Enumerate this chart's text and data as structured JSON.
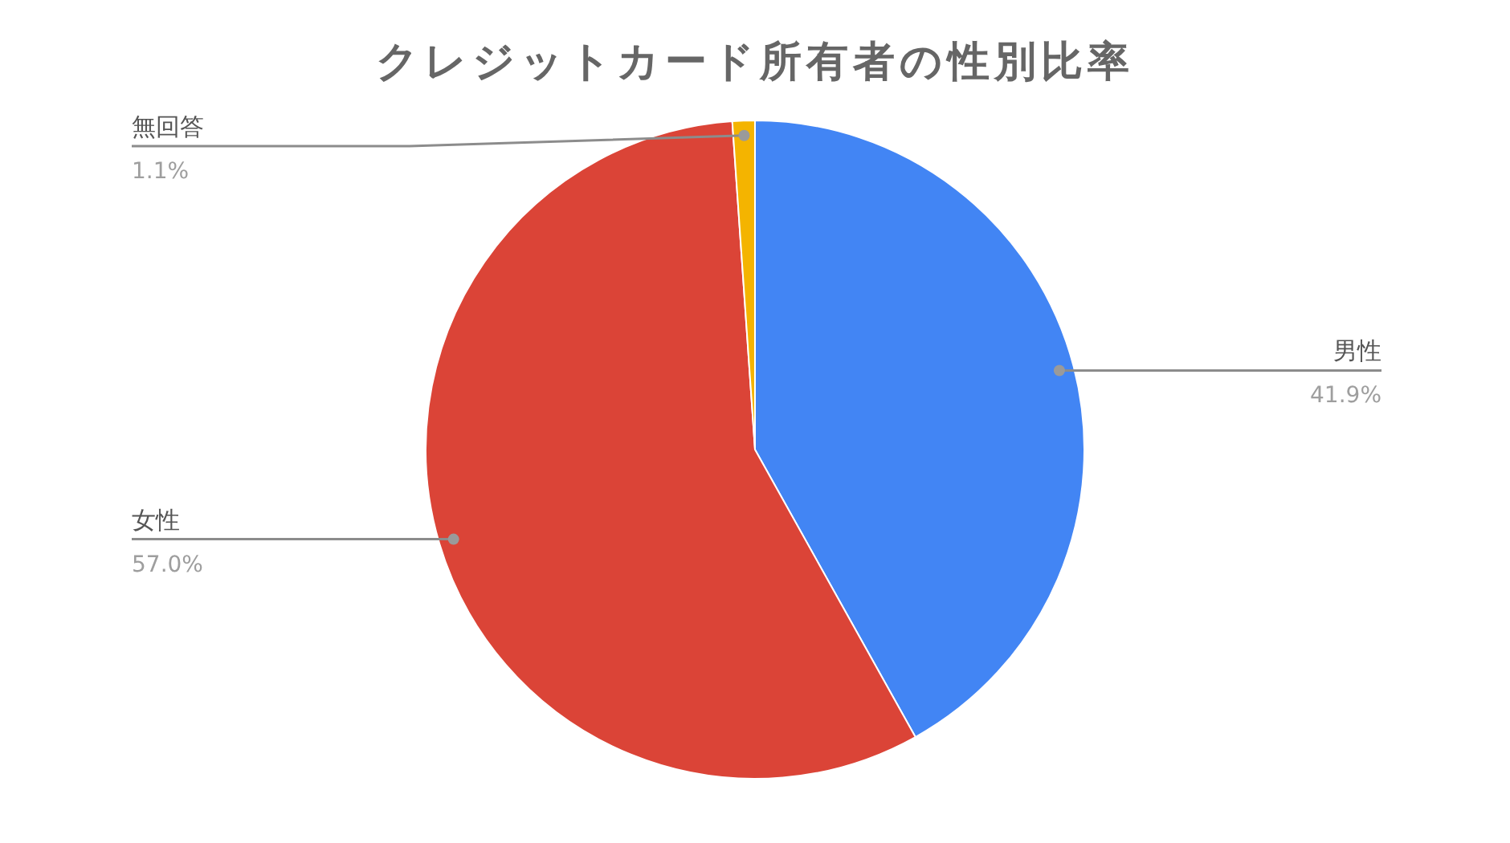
{
  "chart_data": {
    "type": "pie",
    "title": "クレジットカード所有者の性別比率",
    "categories": [
      "男性",
      "女性",
      "無回答"
    ],
    "values": [
      41.9,
      57.0,
      1.1
    ],
    "colors": [
      "#4285f4",
      "#db4437",
      "#f4b400"
    ],
    "value_labels": [
      "41.9%",
      "57.0%",
      "1.1%"
    ]
  }
}
